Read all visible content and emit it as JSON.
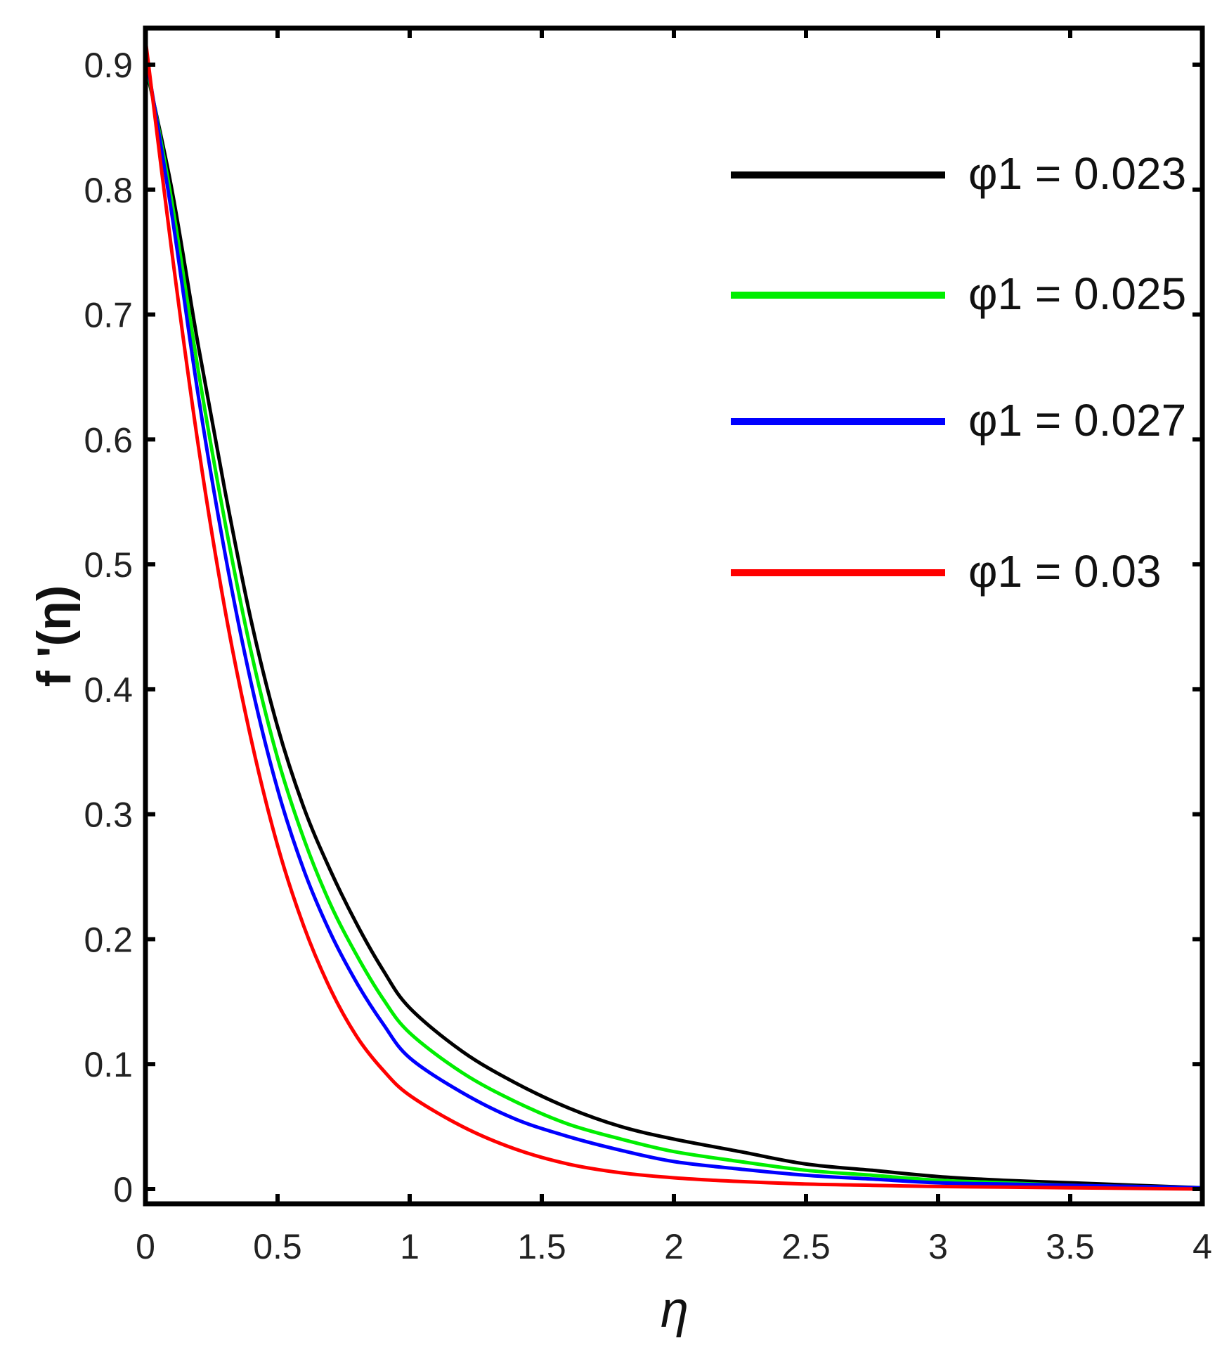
{
  "chart_data": {
    "type": "line",
    "title": "",
    "xlabel": "η",
    "ylabel": "f '(η)",
    "xlim": [
      0,
      4
    ],
    "ylim": [
      0,
      0.9
    ],
    "xticks": [
      "0",
      "0.5",
      "1",
      "1.5",
      "2",
      "2.5",
      "3",
      "3.5",
      "4"
    ],
    "yticks": [
      "0",
      "0.1",
      "0.2",
      "0.3",
      "0.4",
      "0.5",
      "0.6",
      "0.7",
      "0.8",
      "0.9"
    ],
    "grid": false,
    "legend_position": "top-right",
    "x": [
      0,
      0.1,
      0.2,
      0.3,
      0.4,
      0.5,
      0.6,
      0.7,
      0.8,
      0.9,
      1.0,
      1.2,
      1.4,
      1.6,
      1.8,
      2.0,
      2.25,
      2.5,
      2.75,
      3.0,
      3.25,
      3.5,
      3.75,
      4.0
    ],
    "series": [
      {
        "name": "φ1 = 0.023",
        "color": "#000000",
        "values": [
          0.9,
          0.8,
          0.675,
          0.56,
          0.455,
          0.37,
          0.305,
          0.255,
          0.212,
          0.175,
          0.145,
          0.11,
          0.085,
          0.065,
          0.05,
          0.04,
          0.03,
          0.02,
          0.015,
          0.01,
          0.007,
          0.005,
          0.003,
          0.001
        ]
      },
      {
        "name": "φ1 = 0.025",
        "color": "#00ee00",
        "values": [
          0.905,
          0.79,
          0.655,
          0.535,
          0.43,
          0.345,
          0.28,
          0.228,
          0.187,
          0.152,
          0.125,
          0.093,
          0.07,
          0.052,
          0.04,
          0.03,
          0.022,
          0.015,
          0.011,
          0.007,
          0.005,
          0.003,
          0.002,
          0.001
        ]
      },
      {
        "name": "φ1 = 0.027",
        "color": "#0000ff",
        "values": [
          0.91,
          0.78,
          0.635,
          0.51,
          0.405,
          0.32,
          0.255,
          0.205,
          0.165,
          0.132,
          0.105,
          0.077,
          0.056,
          0.042,
          0.031,
          0.022,
          0.016,
          0.011,
          0.008,
          0.005,
          0.004,
          0.003,
          0.002,
          0.001
        ]
      },
      {
        "name": "φ1 = 0.03",
        "color": "#ff0000",
        "values": [
          0.92,
          0.75,
          0.595,
          0.465,
          0.36,
          0.275,
          0.21,
          0.16,
          0.122,
          0.095,
          0.075,
          0.05,
          0.032,
          0.02,
          0.013,
          0.009,
          0.006,
          0.004,
          0.003,
          0.002,
          0.0015,
          0.001,
          0.0005,
          0.0
        ]
      }
    ]
  }
}
